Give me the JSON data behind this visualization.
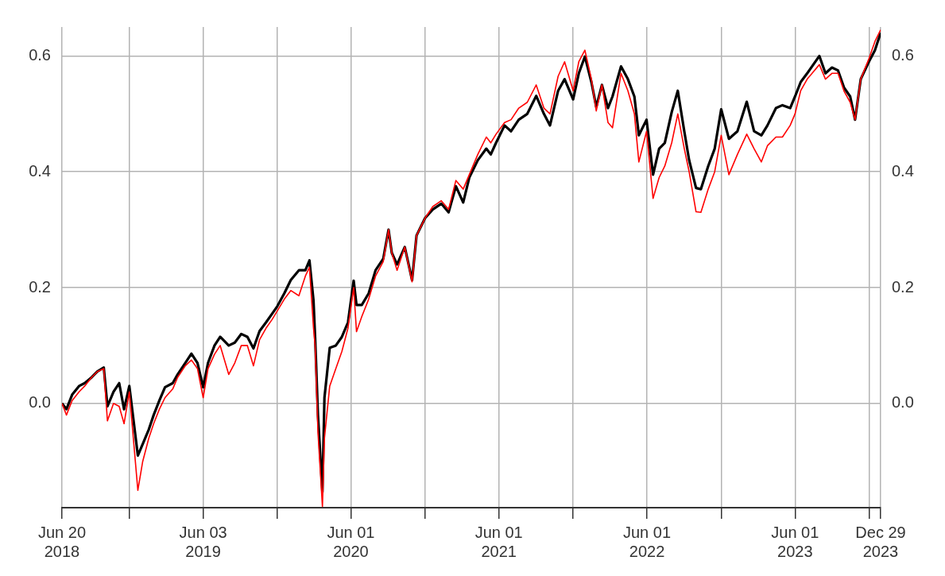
{
  "chart_data": {
    "type": "line",
    "x": [
      "2018-06-20",
      "2018-07-01",
      "2018-07-15",
      "2018-08-01",
      "2018-08-15",
      "2018-09-01",
      "2018-09-15",
      "2018-10-01",
      "2018-10-10",
      "2018-10-25",
      "2018-11-08",
      "2018-11-20",
      "2018-12-03",
      "2018-12-24",
      "2019-01-05",
      "2019-01-20",
      "2019-02-01",
      "2019-02-15",
      "2019-03-01",
      "2019-03-20",
      "2019-04-01",
      "2019-04-20",
      "2019-05-05",
      "2019-05-20",
      "2019-06-03",
      "2019-06-15",
      "2019-07-01",
      "2019-07-15",
      "2019-08-05",
      "2019-08-20",
      "2019-09-05",
      "2019-09-20",
      "2019-10-05",
      "2019-10-20",
      "2019-11-05",
      "2019-11-20",
      "2019-12-03",
      "2019-12-20",
      "2020-01-05",
      "2020-01-25",
      "2020-02-10",
      "2020-02-20",
      "2020-03-01",
      "2020-03-05",
      "2020-03-12",
      "2020-03-23",
      "2020-03-28",
      "2020-04-10",
      "2020-04-25",
      "2020-05-10",
      "2020-05-25",
      "2020-06-08",
      "2020-06-15",
      "2020-06-28",
      "2020-07-15",
      "2020-08-01",
      "2020-08-20",
      "2020-09-02",
      "2020-09-10",
      "2020-09-23",
      "2020-10-12",
      "2020-10-30",
      "2020-11-10",
      "2020-12-01",
      "2020-12-20",
      "2021-01-10",
      "2021-01-28",
      "2021-02-15",
      "2021-03-05",
      "2021-03-20",
      "2021-04-10",
      "2021-05-01",
      "2021-05-12",
      "2021-05-25",
      "2021-06-15",
      "2021-07-01",
      "2021-07-20",
      "2021-08-10",
      "2021-09-01",
      "2021-09-20",
      "2021-10-05",
      "2021-10-25",
      "2021-11-10",
      "2021-12-01",
      "2021-12-15",
      "2021-12-30",
      "2022-01-15",
      "2022-01-27",
      "2022-02-10",
      "2022-02-25",
      "2022-03-08",
      "2022-03-29",
      "2022-04-15",
      "2022-05-01",
      "2022-05-12",
      "2022-05-31",
      "2022-06-16",
      "2022-07-01",
      "2022-07-15",
      "2022-08-01",
      "2022-08-16",
      "2022-09-01",
      "2022-09-13",
      "2022-09-30",
      "2022-10-12",
      "2022-10-30",
      "2022-11-15",
      "2022-12-01",
      "2022-12-20",
      "2023-01-10",
      "2023-02-02",
      "2023-02-20",
      "2023-03-10",
      "2023-03-25",
      "2023-04-15",
      "2023-05-01",
      "2023-05-20",
      "2023-06-01",
      "2023-06-15",
      "2023-07-01",
      "2023-07-31",
      "2023-08-15",
      "2023-08-31",
      "2023-09-15",
      "2023-09-30",
      "2023-10-15",
      "2023-10-27",
      "2023-11-10",
      "2023-11-30",
      "2023-12-15",
      "2023-12-29"
    ],
    "series": [
      {
        "color": "#ff0000",
        "values": [
          0,
          -0.02,
          0.005,
          0.02,
          0.03,
          0.045,
          0.055,
          0.06,
          -0.03,
          0,
          -0.005,
          -0.035,
          0.02,
          -0.15,
          -0.1,
          -0.06,
          -0.035,
          -0.01,
          0.01,
          0.025,
          0.045,
          0.065,
          0.075,
          0.06,
          0.01,
          0.06,
          0.085,
          0.1,
          0.05,
          0.07,
          0.1,
          0.1,
          0.065,
          0.11,
          0.13,
          0.145,
          0.16,
          0.18,
          0.195,
          0.186,
          0.22,
          0.235,
          0.13,
          0.1,
          -0.05,
          -0.178,
          -0.06,
          0.03,
          0.06,
          0.09,
          0.13,
          0.2,
          0.124,
          0.15,
          0.18,
          0.22,
          0.245,
          0.3,
          0.26,
          0.23,
          0.27,
          0.21,
          0.29,
          0.32,
          0.34,
          0.35,
          0.335,
          0.385,
          0.37,
          0.395,
          0.43,
          0.46,
          0.45,
          0.465,
          0.485,
          0.49,
          0.51,
          0.52,
          0.55,
          0.51,
          0.5,
          0.565,
          0.59,
          0.54,
          0.59,
          0.61,
          0.56,
          0.505,
          0.55,
          0.485,
          0.476,
          0.57,
          0.54,
          0.5,
          0.417,
          0.47,
          0.354,
          0.39,
          0.41,
          0.45,
          0.5,
          0.44,
          0.4,
          0.331,
          0.33,
          0.37,
          0.4,
          0.463,
          0.395,
          0.43,
          0.465,
          0.44,
          0.417,
          0.445,
          0.46,
          0.46,
          0.48,
          0.5,
          0.54,
          0.56,
          0.585,
          0.56,
          0.57,
          0.57,
          0.539,
          0.52,
          0.49,
          0.56,
          0.595,
          0.625,
          0.645
        ]
      },
      {
        "color": "#000000",
        "values": [
          0,
          -0.01,
          0.015,
          0.03,
          0.035,
          0.045,
          0.055,
          0.062,
          -0.005,
          0.02,
          0.035,
          -0.01,
          0.03,
          -0.09,
          -0.07,
          -0.045,
          -0.02,
          0.005,
          0.028,
          0.035,
          0.05,
          0.07,
          0.086,
          0.07,
          0.028,
          0.07,
          0.1,
          0.115,
          0.1,
          0.105,
          0.12,
          0.115,
          0.095,
          0.125,
          0.14,
          0.155,
          0.168,
          0.19,
          0.213,
          0.23,
          0.23,
          0.247,
          0.178,
          0.114,
          -0.02,
          -0.153,
          0.01,
          0.096,
          0.1,
          0.115,
          0.14,
          0.212,
          0.17,
          0.17,
          0.19,
          0.23,
          0.25,
          0.3,
          0.26,
          0.24,
          0.27,
          0.213,
          0.29,
          0.32,
          0.335,
          0.345,
          0.33,
          0.375,
          0.347,
          0.39,
          0.42,
          0.44,
          0.43,
          0.45,
          0.48,
          0.47,
          0.49,
          0.5,
          0.531,
          0.5,
          0.48,
          0.54,
          0.56,
          0.525,
          0.57,
          0.599,
          0.555,
          0.512,
          0.55,
          0.51,
          0.53,
          0.582,
          0.56,
          0.53,
          0.463,
          0.49,
          0.395,
          0.44,
          0.45,
          0.503,
          0.54,
          0.47,
          0.42,
          0.372,
          0.37,
          0.41,
          0.44,
          0.508,
          0.457,
          0.47,
          0.521,
          0.47,
          0.463,
          0.48,
          0.51,
          0.515,
          0.51,
          0.53,
          0.555,
          0.57,
          0.6,
          0.57,
          0.58,
          0.575,
          0.545,
          0.53,
          0.49,
          0.56,
          0.59,
          0.61,
          0.64
        ]
      }
    ],
    "xlim": [
      "2018-06-20",
      "2023-12-29"
    ],
    "xticks": [
      {
        "value": "2018-06-20",
        "label": "Jun 20\n2018"
      },
      {
        "value": "2018-12-03",
        "label": null
      },
      {
        "value": "2019-06-03",
        "label": "Jun 03\n2019"
      },
      {
        "value": "2019-12-02",
        "label": null
      },
      {
        "value": "2020-06-01",
        "label": "Jun 01\n2020"
      },
      {
        "value": "2020-12-01",
        "label": null
      },
      {
        "value": "2021-06-01",
        "label": "Jun 01\n2021"
      },
      {
        "value": "2021-12-01",
        "label": null
      },
      {
        "value": "2022-06-01",
        "label": "Jun 01\n2022"
      },
      {
        "value": "2022-12-01",
        "label": null
      },
      {
        "value": "2023-06-01",
        "label": "Jun 01\n2023"
      },
      {
        "value": "2023-12-01",
        "label": null
      },
      {
        "value": "2023-12-29",
        "label": "Dec 29\n2023"
      }
    ],
    "ylim": [
      -0.18,
      0.65
    ],
    "yticks": [
      {
        "value": 0,
        "label": "0.0"
      },
      {
        "value": 0.2,
        "label": "0.2"
      },
      {
        "value": 0.4,
        "label": "0.4"
      },
      {
        "value": 0.6,
        "label": "0.6"
      }
    ],
    "y2lim": [
      -0.18,
      0.65
    ],
    "y2ticks": [
      {
        "value": 0,
        "label": "0.0"
      },
      {
        "value": 0.2,
        "label": "0.2"
      },
      {
        "value": 0.4,
        "label": "0.4"
      },
      {
        "value": 0.6,
        "label": "0.6"
      }
    ],
    "grid": true,
    "legend": false,
    "marker": "none",
    "line_style": "solid"
  }
}
